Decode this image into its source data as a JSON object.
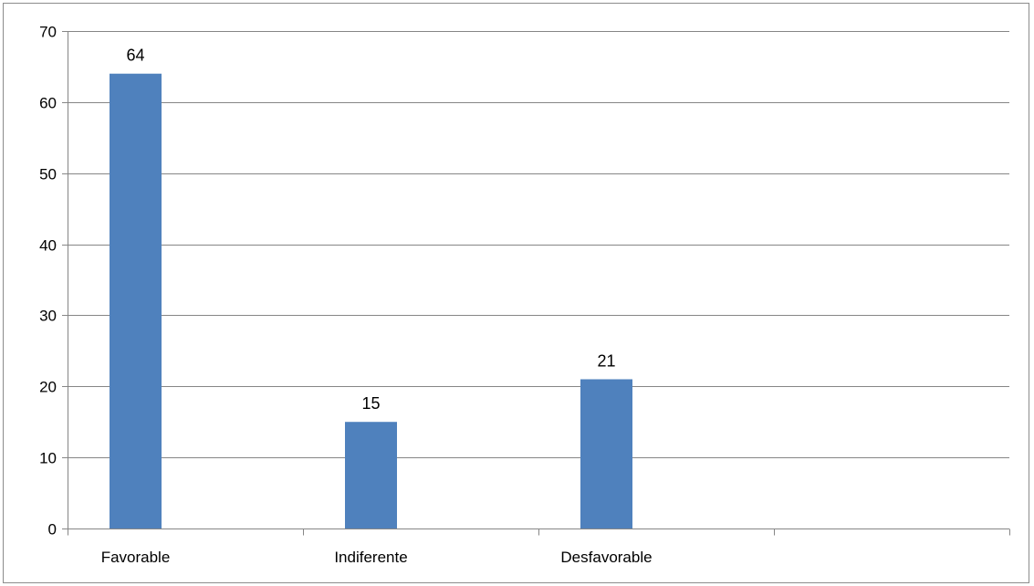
{
  "chart_data": {
    "type": "bar",
    "categories": [
      "Favorable",
      "Indiferente",
      "Desfavorable",
      ""
    ],
    "values": [
      64,
      15,
      21,
      null
    ],
    "data_labels": [
      "64",
      "15",
      "21",
      ""
    ],
    "y_ticks": [
      "0",
      "10",
      "20",
      "30",
      "40",
      "50",
      "60",
      "70"
    ],
    "ylim": [
      0,
      70
    ],
    "grid": true,
    "legend": "none",
    "title": "",
    "xlabel": "",
    "ylabel": "",
    "colors": {
      "bar": "#4f81bd",
      "gridline": "#868686",
      "axis": "#868686"
    }
  }
}
